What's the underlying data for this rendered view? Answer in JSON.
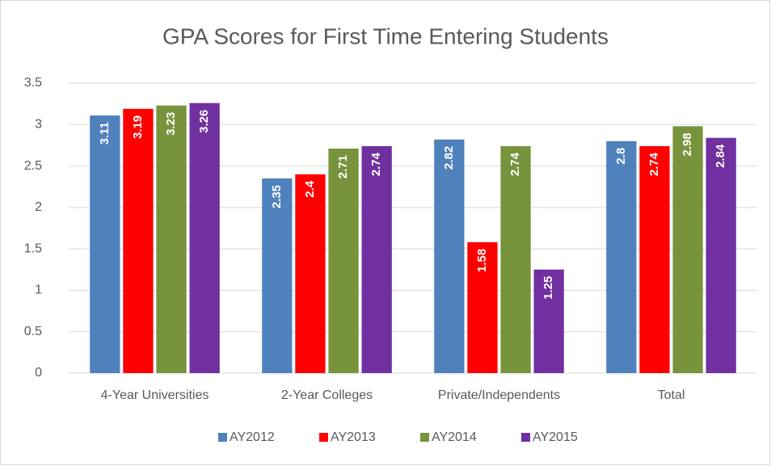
{
  "chart_data": {
    "type": "bar",
    "title": "GPA Scores for First Time Entering Students",
    "categories": [
      "4-Year Universities",
      "2-Year Colleges",
      "Private/Independents",
      "Total"
    ],
    "series": [
      {
        "name": "AY2012",
        "color": "#4f81bd",
        "values": [
          3.11,
          2.35,
          2.82,
          2.8
        ]
      },
      {
        "name": "AY2013",
        "color": "#ff0000",
        "values": [
          3.19,
          2.4,
          1.58,
          2.74
        ]
      },
      {
        "name": "AY2014",
        "color": "#77933c",
        "values": [
          3.23,
          2.71,
          2.74,
          2.98
        ]
      },
      {
        "name": "AY2015",
        "color": "#7030a0",
        "values": [
          3.26,
          2.74,
          1.25,
          2.84
        ]
      }
    ],
    "ylim": [
      0,
      3.5
    ],
    "yticks": [
      0,
      0.5,
      1,
      1.5,
      2,
      2.5,
      3,
      3.5
    ],
    "grid": true,
    "legend": "bottom"
  }
}
